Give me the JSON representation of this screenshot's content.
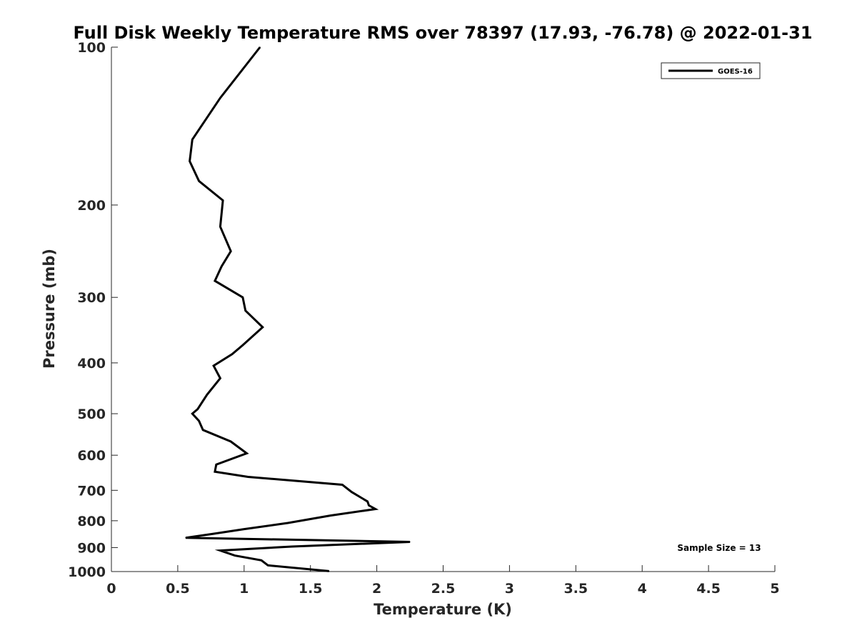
{
  "chart_data": {
    "type": "line",
    "title": "Full Disk Weekly Temperature RMS over 78397 (17.93, -76.78) @ 2022-01-31",
    "xlabel": "Temperature (K)",
    "ylabel": "Pressure (mb)",
    "xlim": [
      0,
      5
    ],
    "ylim": [
      100,
      1000
    ],
    "y_scale": "log",
    "y_reversed": true,
    "x_ticks": [
      0,
      0.5,
      1,
      1.5,
      2,
      2.5,
      3,
      3.5,
      4,
      4.5,
      5
    ],
    "x_tick_labels": [
      "0",
      "0.5",
      "1",
      "1.5",
      "2",
      "2.5",
      "3",
      "3.5",
      "4",
      "4.5",
      "5"
    ],
    "y_ticks": [
      100,
      200,
      300,
      400,
      500,
      600,
      700,
      800,
      900,
      1000
    ],
    "y_tick_labels": [
      "100",
      "200",
      "300",
      "400",
      "500",
      "600",
      "700",
      "800",
      "900",
      "1000"
    ],
    "grid": false,
    "legend_position": "top-right",
    "annotation": "Sample Size = 13",
    "series": [
      {
        "name": "GOES-16",
        "color": "#000000",
        "points": [
          [
            1.12,
            100
          ],
          [
            0.82,
            125
          ],
          [
            0.61,
            150
          ],
          [
            0.59,
            165
          ],
          [
            0.66,
            180
          ],
          [
            0.84,
            196
          ],
          [
            0.82,
            220
          ],
          [
            0.9,
            245
          ],
          [
            0.83,
            262
          ],
          [
            0.78,
            279
          ],
          [
            0.99,
            300
          ],
          [
            1.01,
            318
          ],
          [
            1.14,
            342
          ],
          [
            0.99,
            370
          ],
          [
            0.91,
            385
          ],
          [
            0.77,
            405
          ],
          [
            0.82,
            428
          ],
          [
            0.72,
            460
          ],
          [
            0.65,
            490
          ],
          [
            0.61,
            500
          ],
          [
            0.66,
            516
          ],
          [
            0.69,
            537
          ],
          [
            0.9,
            565
          ],
          [
            1.02,
            595
          ],
          [
            0.79,
            625
          ],
          [
            0.78,
            645
          ],
          [
            1.03,
            660
          ],
          [
            1.74,
            683
          ],
          [
            1.81,
            705
          ],
          [
            1.93,
            735
          ],
          [
            1.94,
            748
          ],
          [
            1.99,
            760
          ],
          [
            1.65,
            782
          ],
          [
            1.33,
            808
          ],
          [
            1.0,
            830
          ],
          [
            0.76,
            848
          ],
          [
            0.56,
            862
          ],
          [
            2.25,
            878
          ],
          [
            1.36,
            896
          ],
          [
            0.82,
            912
          ],
          [
            0.93,
            932
          ],
          [
            1.13,
            952
          ],
          [
            1.18,
            973
          ],
          [
            1.64,
            998
          ]
        ]
      }
    ]
  }
}
